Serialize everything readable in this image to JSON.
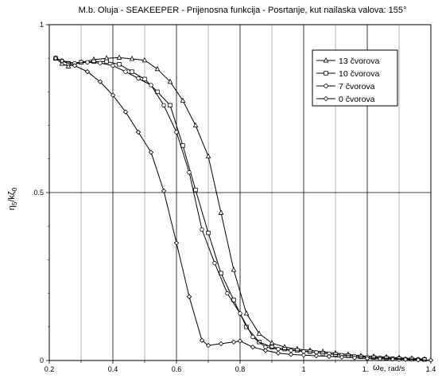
{
  "chart_data": {
    "type": "line",
    "title": "M.b. Oluja - SEAKEEPER  - Prijenosna funkcija - Posrtanje, kut nailaska valova: 155°",
    "ylabel_main": "η",
    "ylabel_sub1": "5",
    "ylabel_mid": "/kζ",
    "ylabel_sub2": "0",
    "xlabel_main": "ω",
    "xlabel_sub": "e, rad/s",
    "xlim": [
      0.2,
      1.4
    ],
    "ylim": [
      0,
      1
    ],
    "x_ticks": [
      0.2,
      0.4,
      0.6,
      0.8,
      1,
      1.2,
      1.4
    ],
    "x_tick_labels": [
      "0.2",
      "0.4",
      "0.6",
      "0.8",
      "1",
      "1.2",
      "1.4"
    ],
    "y_ticks": [
      0,
      0.5,
      1
    ],
    "y_tick_labels": [
      "0",
      "0.5",
      "1"
    ],
    "grid": true,
    "legend_position": "top-right",
    "series": [
      {
        "name": "13 čvorova",
        "marker": "triangle",
        "x": [
          0.22,
          0.24,
          0.26,
          0.3,
          0.34,
          0.38,
          0.42,
          0.46,
          0.5,
          0.54,
          0.58,
          0.62,
          0.66,
          0.7,
          0.74,
          0.78,
          0.82,
          0.86,
          0.9,
          0.94,
          0.98,
          1.02,
          1.06,
          1.1,
          1.14,
          1.18,
          1.22,
          1.26,
          1.3,
          1.34,
          1.38
        ],
        "y": [
          0.9,
          0.884,
          0.876,
          0.888,
          0.896,
          0.9,
          0.902,
          0.898,
          0.894,
          0.868,
          0.83,
          0.774,
          0.7,
          0.608,
          0.44,
          0.27,
          0.14,
          0.08,
          0.052,
          0.04,
          0.034,
          0.03,
          0.026,
          0.022,
          0.018,
          0.014,
          0.012,
          0.01,
          0.008,
          0.006,
          0.004
        ]
      },
      {
        "name": "10 čvorova",
        "marker": "square",
        "x": [
          0.22,
          0.26,
          0.3,
          0.34,
          0.38,
          0.42,
          0.46,
          0.5,
          0.54,
          0.58,
          0.62,
          0.66,
          0.7,
          0.74,
          0.78,
          0.82,
          0.86,
          0.9,
          0.94,
          0.98,
          1.02,
          1.06,
          1.1,
          1.14,
          1.18,
          1.22,
          1.26,
          1.3,
          1.34,
          1.38
        ],
        "y": [
          0.9,
          0.885,
          0.888,
          0.89,
          0.89,
          0.882,
          0.86,
          0.838,
          0.8,
          0.76,
          0.64,
          0.508,
          0.38,
          0.26,
          0.18,
          0.1,
          0.055,
          0.04,
          0.034,
          0.03,
          0.026,
          0.022,
          0.018,
          0.014,
          0.011,
          0.009,
          0.007,
          0.005,
          0.004,
          0.003
        ]
      },
      {
        "name": "7 čvorova",
        "marker": "circle",
        "x": [
          0.22,
          0.24,
          0.28,
          0.32,
          0.36,
          0.4,
          0.44,
          0.48,
          0.52,
          0.56,
          0.6,
          0.64,
          0.68,
          0.72,
          0.76,
          0.8,
          0.84,
          0.88,
          0.92,
          0.96,
          1,
          1.04,
          1.08,
          1.12,
          1.16,
          1.2,
          1.24,
          1.28,
          1.32,
          1.36,
          1.38
        ],
        "y": [
          0.9,
          0.893,
          0.885,
          0.888,
          0.886,
          0.878,
          0.86,
          0.84,
          0.82,
          0.76,
          0.68,
          0.56,
          0.39,
          0.29,
          0.2,
          0.14,
          0.07,
          0.04,
          0.034,
          0.03,
          0.027,
          0.024,
          0.02,
          0.016,
          0.013,
          0.01,
          0.008,
          0.006,
          0.005,
          0.004,
          0.003
        ]
      },
      {
        "name": "0 čvorova",
        "marker": "diamond",
        "x": [
          0.22,
          0.24,
          0.28,
          0.32,
          0.36,
          0.4,
          0.44,
          0.48,
          0.52,
          0.56,
          0.6,
          0.64,
          0.68,
          0.7,
          0.74,
          0.78,
          0.8,
          0.84,
          0.88,
          0.92,
          0.96,
          1,
          1.04,
          1.08,
          1.12,
          1.16,
          1.2,
          1.24,
          1.28,
          1.32,
          1.36,
          1.4
        ],
        "y": [
          0.9,
          0.892,
          0.878,
          0.86,
          0.83,
          0.79,
          0.74,
          0.68,
          0.62,
          0.505,
          0.35,
          0.19,
          0.06,
          0.045,
          0.05,
          0.055,
          0.058,
          0.04,
          0.03,
          0.022,
          0.018,
          0.016,
          0.014,
          0.012,
          0.01,
          0.008,
          0.006,
          0.005,
          0.004,
          0.003,
          0.002,
          0.001
        ]
      }
    ]
  }
}
